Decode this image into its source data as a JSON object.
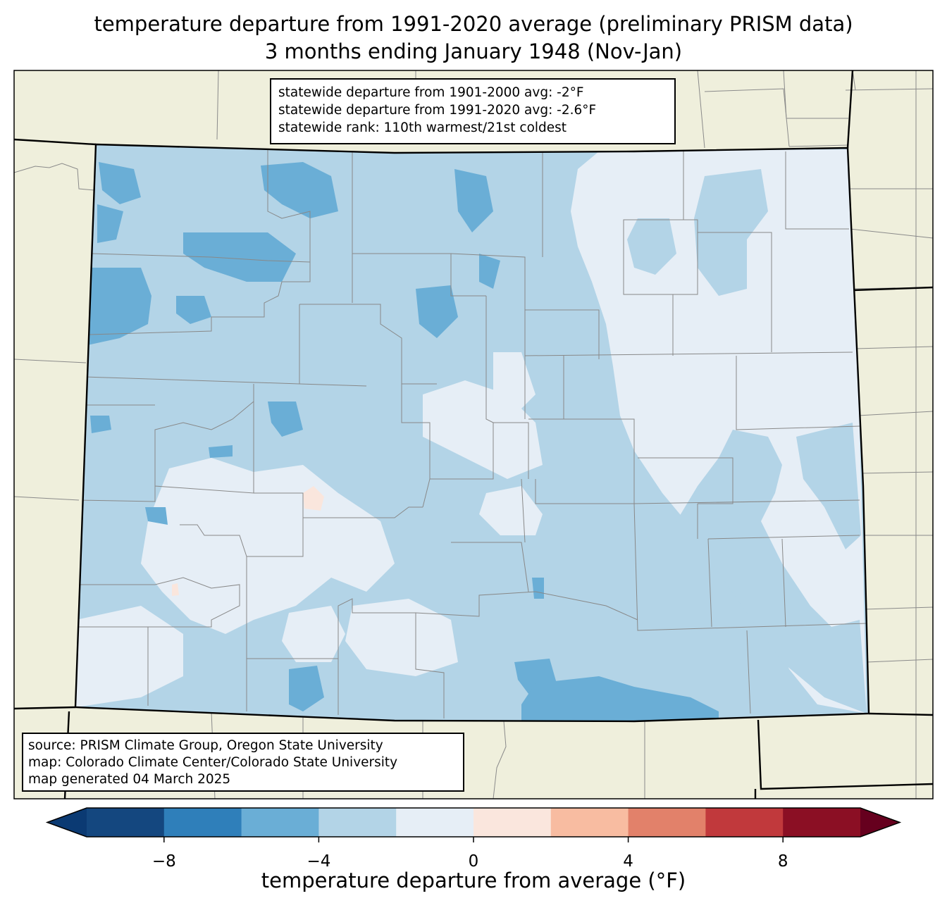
{
  "title": {
    "line1": "temperature departure from 1991-2020 average (preliminary PRISM data)",
    "line2": "3 months ending January 1948 (Nov-Jan)"
  },
  "stats": {
    "line1": "statewide departure from 1901-2000 avg: -2°F",
    "line2": "statewide departure from 1991-2020 avg: -2.6°F",
    "line3": "statewide rank: 110th warmest/21st coldest"
  },
  "source": {
    "line1": "source: PRISM Climate Group, Oregon State University",
    "line2": "map: Colorado Climate Center/Colorado State University",
    "line3": "map generated 04 March 2025"
  },
  "colorbar": {
    "label": "temperature departure from average (°F)",
    "min": -10,
    "max": 10,
    "step": 2,
    "ticks": [
      -8,
      -4,
      0,
      4,
      8
    ],
    "tick_labels": [
      "−8",
      "−4",
      "0",
      "4",
      "8"
    ],
    "colors": [
      "#0b3a73",
      "#14477f",
      "#2f7fba",
      "#6aaed6",
      "#b3d4e7",
      "#e6eef6",
      "#fae6dd",
      "#f8bca1",
      "#e2816a",
      "#c1393c",
      "#8b0f24",
      "#66001e"
    ]
  },
  "map_colors": {
    "land": "#efefdc",
    "state_fill": "#b3d4e7"
  }
}
